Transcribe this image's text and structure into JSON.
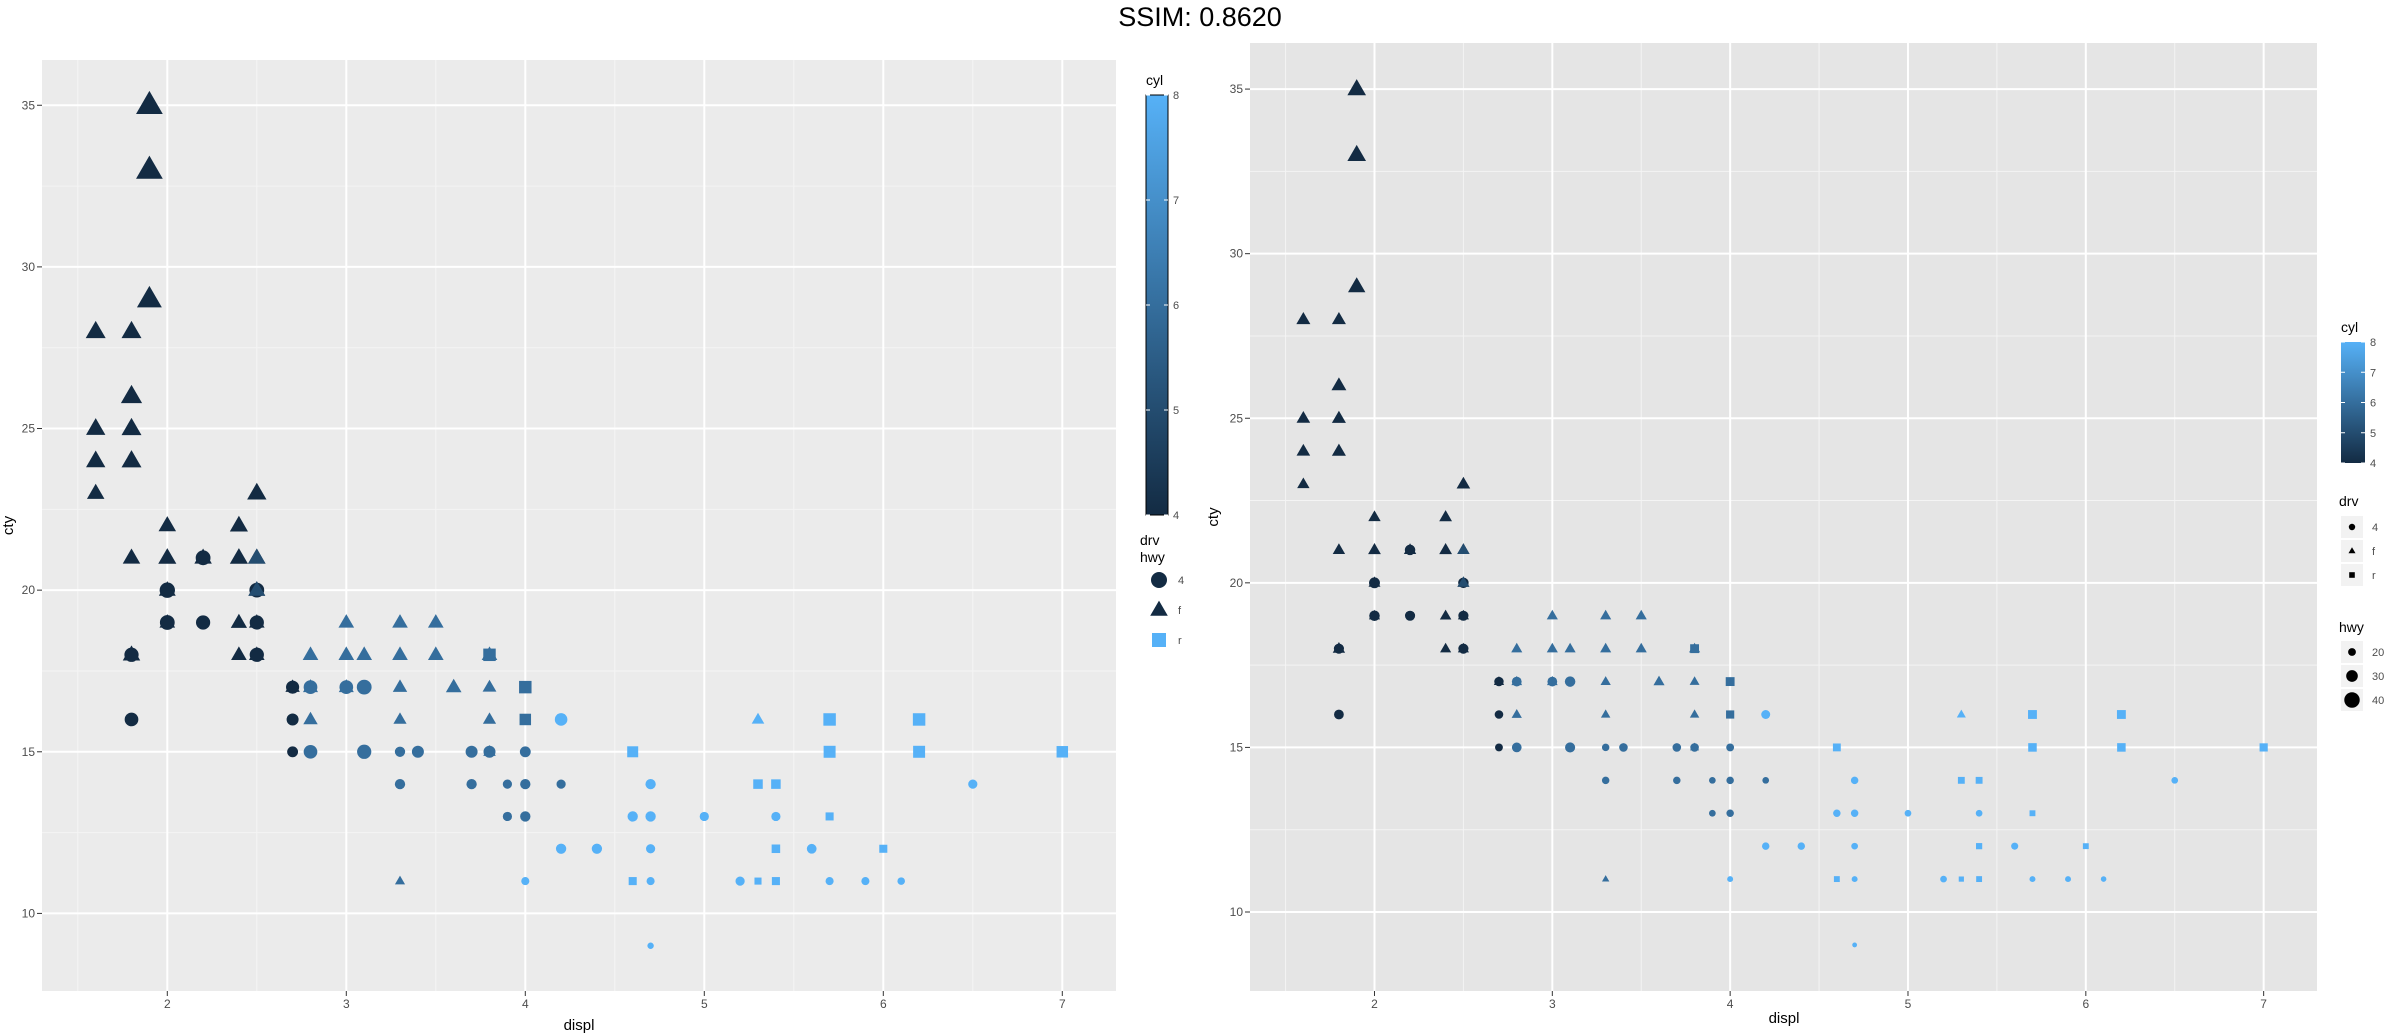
{
  "title": "SSIM: 0.8620",
  "chart_data": [
    {
      "type": "scatter",
      "xlabel": "displ",
      "ylabel": "cty",
      "xlim": [
        1.3,
        7.3
      ],
      "ylim": [
        7.6,
        36.4
      ],
      "xticks": [
        2,
        3,
        4,
        5,
        6,
        7
      ],
      "yticks": [
        10,
        15,
        20,
        25,
        30,
        35
      ],
      "grid": true,
      "legend_position": "right",
      "legends": {
        "color": {
          "title": "cyl",
          "range": [
            4,
            8
          ],
          "ticks": [
            4,
            5,
            6,
            7,
            8
          ],
          "low_color": "#132B43",
          "high_color": "#56B1F7"
        },
        "shape": {
          "title": "drv\nhwy",
          "levels": [
            "4",
            "f",
            "r"
          ]
        }
      }
    },
    {
      "type": "scatter",
      "xlabel": "displ",
      "ylabel": "cty",
      "xlim": [
        1.3,
        7.3
      ],
      "ylim": [
        7.6,
        36.4
      ],
      "xticks": [
        2,
        3,
        4,
        5,
        6,
        7
      ],
      "yticks": [
        10,
        15,
        20,
        25,
        30,
        35
      ],
      "grid": true,
      "legend_position": "right",
      "legends": {
        "color": {
          "title": "cyl",
          "range": [
            4,
            8
          ],
          "ticks": [
            4,
            5,
            6,
            7,
            8
          ],
          "low_color": "#132B43",
          "high_color": "#56B1F7"
        },
        "shape": {
          "title": "drv",
          "levels": [
            "4",
            "f",
            "r"
          ]
        },
        "size": {
          "title": "hwy",
          "levels": [
            20,
            30,
            40
          ]
        }
      }
    }
  ],
  "points": [
    {
      "x": 1.6,
      "y": 28,
      "drv": "f",
      "cyl": 4,
      "hwy": 33
    },
    {
      "x": 1.6,
      "y": 25,
      "drv": "f",
      "cyl": 4,
      "hwy": 32
    },
    {
      "x": 1.6,
      "y": 24,
      "drv": "f",
      "cyl": 4,
      "hwy": 32
    },
    {
      "x": 1.6,
      "y": 23,
      "drv": "f",
      "cyl": 4,
      "hwy": 29
    },
    {
      "x": 1.8,
      "y": 28,
      "drv": "f",
      "cyl": 4,
      "hwy": 33
    },
    {
      "x": 1.8,
      "y": 26,
      "drv": "f",
      "cyl": 4,
      "hwy": 35
    },
    {
      "x": 1.8,
      "y": 25,
      "drv": "f",
      "cyl": 4,
      "hwy": 33
    },
    {
      "x": 1.8,
      "y": 24,
      "drv": "f",
      "cyl": 4,
      "hwy": 33
    },
    {
      "x": 1.8,
      "y": 21,
      "drv": "f",
      "cyl": 4,
      "hwy": 29
    },
    {
      "x": 1.8,
      "y": 18,
      "drv": "4",
      "cyl": 4,
      "hwy": 26
    },
    {
      "x": 1.8,
      "y": 18,
      "drv": "f",
      "cyl": 4,
      "hwy": 29
    },
    {
      "x": 1.8,
      "y": 16,
      "drv": "4",
      "cyl": 4,
      "hwy": 25
    },
    {
      "x": 1.9,
      "y": 35,
      "drv": "f",
      "cyl": 4,
      "hwy": 44
    },
    {
      "x": 1.9,
      "y": 33,
      "drv": "f",
      "cyl": 4,
      "hwy": 44
    },
    {
      "x": 1.9,
      "y": 29,
      "drv": "f",
      "cyl": 4,
      "hwy": 41
    },
    {
      "x": 2.0,
      "y": 22,
      "drv": "f",
      "cyl": 4,
      "hwy": 29
    },
    {
      "x": 2.0,
      "y": 21,
      "drv": "f",
      "cyl": 4,
      "hwy": 30
    },
    {
      "x": 2.0,
      "y": 20,
      "drv": "f",
      "cyl": 4,
      "hwy": 28
    },
    {
      "x": 2.0,
      "y": 20,
      "drv": "4",
      "cyl": 4,
      "hwy": 28
    },
    {
      "x": 2.0,
      "y": 19,
      "drv": "f",
      "cyl": 4,
      "hwy": 26
    },
    {
      "x": 2.0,
      "y": 19,
      "drv": "4",
      "cyl": 4,
      "hwy": 27
    },
    {
      "x": 2.2,
      "y": 21,
      "drv": "f",
      "cyl": 4,
      "hwy": 29
    },
    {
      "x": 2.2,
      "y": 21,
      "drv": "4",
      "cyl": 4,
      "hwy": 27
    },
    {
      "x": 2.2,
      "y": 19,
      "drv": "4",
      "cyl": 4,
      "hwy": 26
    },
    {
      "x": 2.4,
      "y": 22,
      "drv": "f",
      "cyl": 4,
      "hwy": 30
    },
    {
      "x": 2.4,
      "y": 21,
      "drv": "f",
      "cyl": 4,
      "hwy": 30
    },
    {
      "x": 2.4,
      "y": 19,
      "drv": "f",
      "cyl": 4,
      "hwy": 27
    },
    {
      "x": 2.4,
      "y": 18,
      "drv": "f",
      "cyl": 4,
      "hwy": 26
    },
    {
      "x": 2.5,
      "y": 23,
      "drv": "f",
      "cyl": 4,
      "hwy": 32
    },
    {
      "x": 2.5,
      "y": 21,
      "drv": "f",
      "cyl": 4,
      "hwy": 29
    },
    {
      "x": 2.5,
      "y": 20,
      "drv": "f",
      "cyl": 4,
      "hwy": 28
    },
    {
      "x": 2.5,
      "y": 20,
      "drv": "4",
      "cyl": 4,
      "hwy": 27
    },
    {
      "x": 2.5,
      "y": 19,
      "drv": "f",
      "cyl": 4,
      "hwy": 26
    },
    {
      "x": 2.5,
      "y": 19,
      "drv": "4",
      "cyl": 4,
      "hwy": 26
    },
    {
      "x": 2.5,
      "y": 18,
      "drv": "f",
      "cyl": 4,
      "hwy": 26
    },
    {
      "x": 2.5,
      "y": 18,
      "drv": "4",
      "cyl": 4,
      "hwy": 26
    },
    {
      "x": 2.5,
      "y": 21,
      "drv": "f",
      "cyl": 5,
      "hwy": 29
    },
    {
      "x": 2.5,
      "y": 20,
      "drv": "f",
      "cyl": 5,
      "hwy": 28
    },
    {
      "x": 2.7,
      "y": 17,
      "drv": "4",
      "cyl": 4,
      "hwy": 24
    },
    {
      "x": 2.7,
      "y": 16,
      "drv": "4",
      "cyl": 4,
      "hwy": 22
    },
    {
      "x": 2.7,
      "y": 15,
      "drv": "4",
      "cyl": 4,
      "hwy": 20
    },
    {
      "x": 2.7,
      "y": 17,
      "drv": "f",
      "cyl": 4,
      "hwy": 24
    },
    {
      "x": 2.8,
      "y": 18,
      "drv": "f",
      "cyl": 6,
      "hwy": 26
    },
    {
      "x": 2.8,
      "y": 17,
      "drv": "f",
      "cyl": 6,
      "hwy": 25
    },
    {
      "x": 2.8,
      "y": 16,
      "drv": "f",
      "cyl": 6,
      "hwy": 24
    },
    {
      "x": 2.8,
      "y": 17,
      "drv": "4",
      "cyl": 6,
      "hwy": 25
    },
    {
      "x": 2.8,
      "y": 15,
      "drv": "4",
      "cyl": 6,
      "hwy": 25
    },
    {
      "x": 3.0,
      "y": 19,
      "drv": "f",
      "cyl": 6,
      "hwy": 26
    },
    {
      "x": 3.0,
      "y": 18,
      "drv": "f",
      "cyl": 6,
      "hwy": 26
    },
    {
      "x": 3.0,
      "y": 17,
      "drv": "f",
      "cyl": 6,
      "hwy": 25
    },
    {
      "x": 3.0,
      "y": 17,
      "drv": "4",
      "cyl": 6,
      "hwy": 25
    },
    {
      "x": 3.1,
      "y": 18,
      "drv": "f",
      "cyl": 6,
      "hwy": 26
    },
    {
      "x": 3.1,
      "y": 17,
      "drv": "4",
      "cyl": 6,
      "hwy": 27
    },
    {
      "x": 3.1,
      "y": 15,
      "drv": "4",
      "cyl": 6,
      "hwy": 26
    },
    {
      "x": 3.3,
      "y": 19,
      "drv": "f",
      "cyl": 6,
      "hwy": 26
    },
    {
      "x": 3.3,
      "y": 18,
      "drv": "f",
      "cyl": 6,
      "hwy": 26
    },
    {
      "x": 3.3,
      "y": 17,
      "drv": "f",
      "cyl": 6,
      "hwy": 24
    },
    {
      "x": 3.3,
      "y": 16,
      "drv": "f",
      "cyl": 6,
      "hwy": 22
    },
    {
      "x": 3.3,
      "y": 15,
      "drv": "4",
      "cyl": 6,
      "hwy": 19
    },
    {
      "x": 3.3,
      "y": 14,
      "drv": "4",
      "cyl": 6,
      "hwy": 19
    },
    {
      "x": 3.3,
      "y": 11,
      "drv": "f",
      "cyl": 6,
      "hwy": 17
    },
    {
      "x": 3.4,
      "y": 15,
      "drv": "4",
      "cyl": 6,
      "hwy": 22
    },
    {
      "x": 3.5,
      "y": 19,
      "drv": "f",
      "cyl": 6,
      "hwy": 26
    },
    {
      "x": 3.5,
      "y": 18,
      "drv": "f",
      "cyl": 6,
      "hwy": 26
    },
    {
      "x": 3.6,
      "y": 17,
      "drv": "f",
      "cyl": 6,
      "hwy": 26
    },
    {
      "x": 3.7,
      "y": 15,
      "drv": "4",
      "cyl": 6,
      "hwy": 22
    },
    {
      "x": 3.7,
      "y": 14,
      "drv": "4",
      "cyl": 6,
      "hwy": 19
    },
    {
      "x": 3.8,
      "y": 18,
      "drv": "f",
      "cyl": 6,
      "hwy": 26
    },
    {
      "x": 3.8,
      "y": 18,
      "drv": "r",
      "cyl": 6,
      "hwy": 26
    },
    {
      "x": 3.8,
      "y": 17,
      "drv": "f",
      "cyl": 6,
      "hwy": 23
    },
    {
      "x": 3.8,
      "y": 16,
      "drv": "f",
      "cyl": 6,
      "hwy": 22
    },
    {
      "x": 3.8,
      "y": 15,
      "drv": "f",
      "cyl": 6,
      "hwy": 21
    },
    {
      "x": 3.8,
      "y": 15,
      "drv": "4",
      "cyl": 6,
      "hwy": 22
    },
    {
      "x": 3.9,
      "y": 14,
      "drv": "4",
      "cyl": 6,
      "hwy": 17
    },
    {
      "x": 3.9,
      "y": 13,
      "drv": "4",
      "cyl": 6,
      "hwy": 17
    },
    {
      "x": 4.0,
      "y": 17,
      "drv": "r",
      "cyl": 6,
      "hwy": 26
    },
    {
      "x": 4.0,
      "y": 16,
      "drv": "r",
      "cyl": 6,
      "hwy": 24
    },
    {
      "x": 4.0,
      "y": 16,
      "drv": "4",
      "cyl": 6,
      "hwy": 20
    },
    {
      "x": 4.0,
      "y": 15,
      "drv": "4",
      "cyl": 6,
      "hwy": 20
    },
    {
      "x": 4.0,
      "y": 14,
      "drv": "4",
      "cyl": 6,
      "hwy": 19
    },
    {
      "x": 4.0,
      "y": 13,
      "drv": "4",
      "cyl": 6,
      "hwy": 19
    },
    {
      "x": 4.0,
      "y": 11,
      "drv": "4",
      "cyl": 8,
      "hwy": 15
    },
    {
      "x": 4.2,
      "y": 16,
      "drv": "4",
      "cyl": 8,
      "hwy": 23
    },
    {
      "x": 4.2,
      "y": 14,
      "drv": "4",
      "cyl": 6,
      "hwy": 17
    },
    {
      "x": 4.2,
      "y": 12,
      "drv": "4",
      "cyl": 8,
      "hwy": 19
    },
    {
      "x": 4.4,
      "y": 12,
      "drv": "4",
      "cyl": 8,
      "hwy": 19
    },
    {
      "x": 4.6,
      "y": 15,
      "drv": "r",
      "cyl": 8,
      "hwy": 23
    },
    {
      "x": 4.6,
      "y": 13,
      "drv": "4",
      "cyl": 8,
      "hwy": 19
    },
    {
      "x": 4.6,
      "y": 11,
      "drv": "r",
      "cyl": 8,
      "hwy": 17
    },
    {
      "x": 4.7,
      "y": 14,
      "drv": "4",
      "cyl": 8,
      "hwy": 19
    },
    {
      "x": 4.7,
      "y": 13,
      "drv": "4",
      "cyl": 8,
      "hwy": 19
    },
    {
      "x": 4.7,
      "y": 12,
      "drv": "4",
      "cyl": 8,
      "hwy": 17
    },
    {
      "x": 4.7,
      "y": 11,
      "drv": "4",
      "cyl": 8,
      "hwy": 15
    },
    {
      "x": 4.7,
      "y": 9,
      "drv": "4",
      "cyl": 8,
      "hwy": 12
    },
    {
      "x": 5.0,
      "y": 13,
      "drv": "4",
      "cyl": 8,
      "hwy": 17
    },
    {
      "x": 5.2,
      "y": 11,
      "drv": "4",
      "cyl": 8,
      "hwy": 17
    },
    {
      "x": 5.3,
      "y": 16,
      "drv": "f",
      "cyl": 8,
      "hwy": 21
    },
    {
      "x": 5.3,
      "y": 11,
      "drv": "r",
      "cyl": 8,
      "hwy": 15
    },
    {
      "x": 5.3,
      "y": 14,
      "drv": "r",
      "cyl": 8,
      "hwy": 20
    },
    {
      "x": 5.4,
      "y": 14,
      "drv": "r",
      "cyl": 8,
      "hwy": 20
    },
    {
      "x": 5.4,
      "y": 13,
      "drv": "4",
      "cyl": 8,
      "hwy": 17
    },
    {
      "x": 5.4,
      "y": 12,
      "drv": "r",
      "cyl": 8,
      "hwy": 18
    },
    {
      "x": 5.4,
      "y": 11,
      "drv": "r",
      "cyl": 8,
      "hwy": 17
    },
    {
      "x": 5.6,
      "y": 12,
      "drv": "4",
      "cyl": 8,
      "hwy": 18
    },
    {
      "x": 5.7,
      "y": 16,
      "drv": "r",
      "cyl": 8,
      "hwy": 26
    },
    {
      "x": 5.7,
      "y": 15,
      "drv": "r",
      "cyl": 8,
      "hwy": 25
    },
    {
      "x": 5.7,
      "y": 13,
      "drv": "r",
      "cyl": 8,
      "hwy": 17
    },
    {
      "x": 5.7,
      "y": 11,
      "drv": "4",
      "cyl": 8,
      "hwy": 15
    },
    {
      "x": 5.9,
      "y": 11,
      "drv": "4",
      "cyl": 8,
      "hwy": 15
    },
    {
      "x": 6.0,
      "y": 12,
      "drv": "r",
      "cyl": 8,
      "hwy": 17
    },
    {
      "x": 6.1,
      "y": 11,
      "drv": "4",
      "cyl": 8,
      "hwy": 14
    },
    {
      "x": 6.2,
      "y": 16,
      "drv": "r",
      "cyl": 8,
      "hwy": 26
    },
    {
      "x": 6.2,
      "y": 15,
      "drv": "r",
      "cyl": 8,
      "hwy": 25
    },
    {
      "x": 6.5,
      "y": 14,
      "drv": "4",
      "cyl": 8,
      "hwy": 17
    },
    {
      "x": 7.0,
      "y": 15,
      "drv": "r",
      "cyl": 8,
      "hwy": 24
    }
  ]
}
